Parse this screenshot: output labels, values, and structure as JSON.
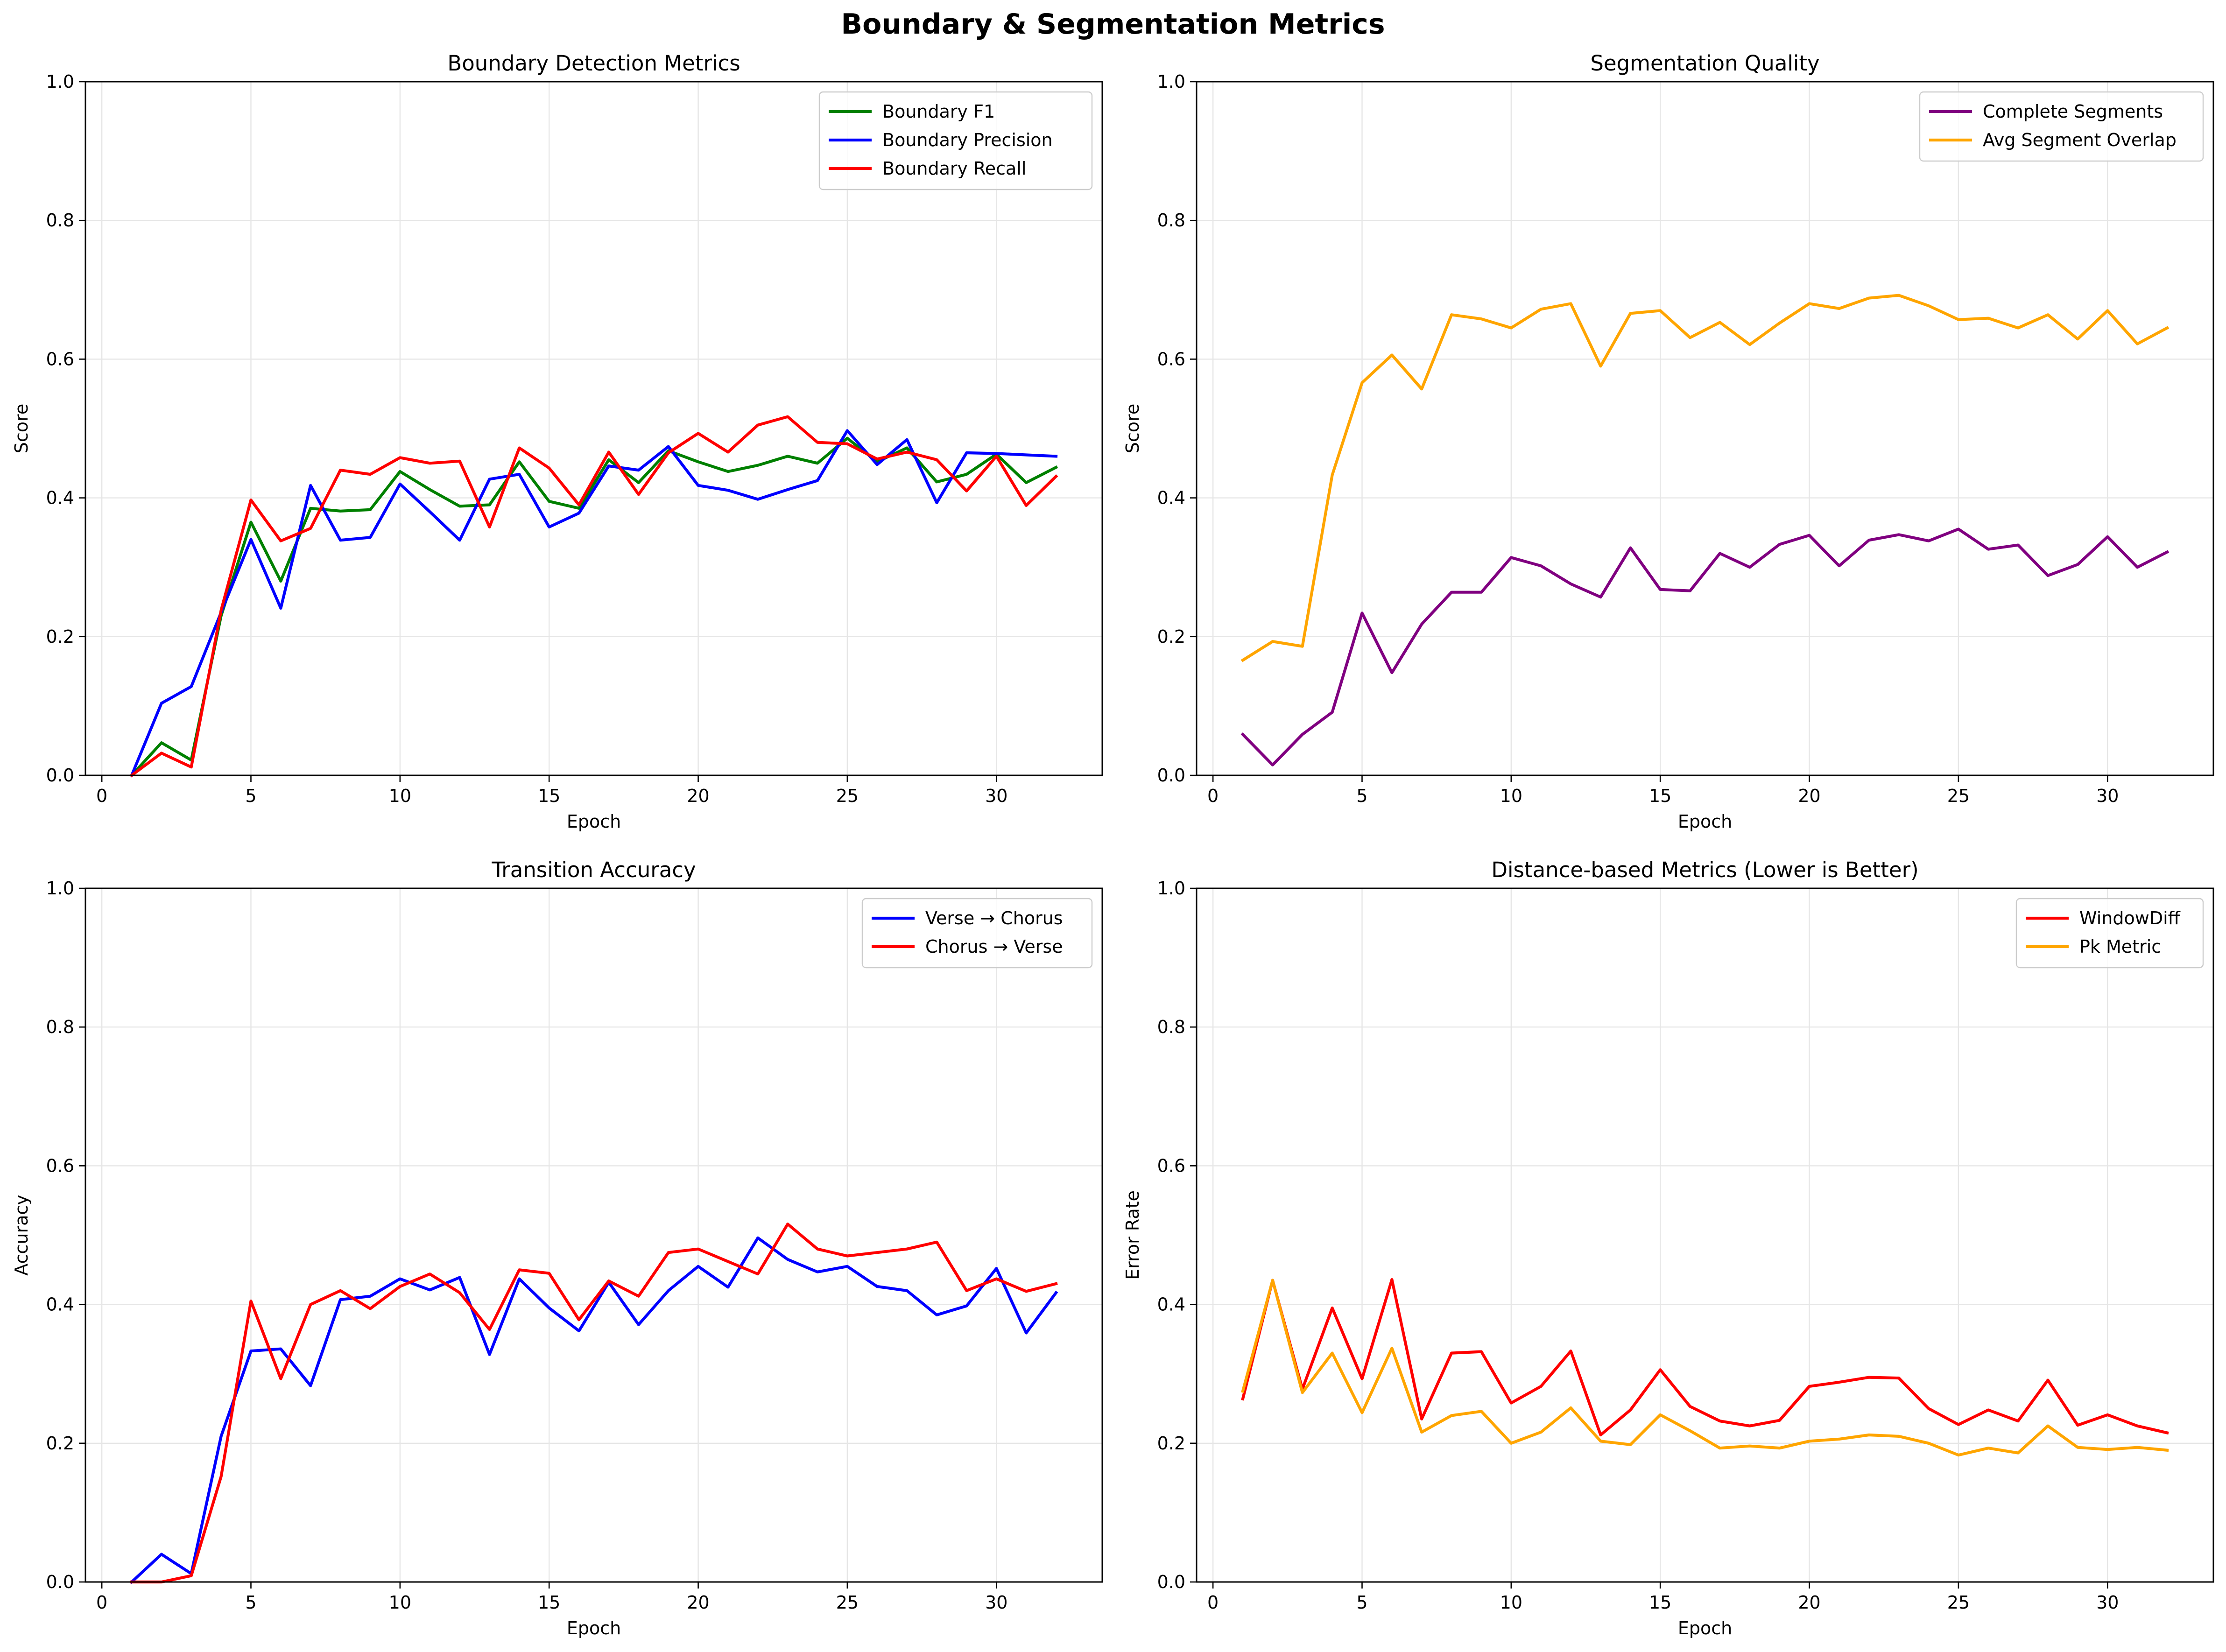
{
  "suptitle": "Boundary & Segmentation Metrics",
  "colors": {
    "green": "#008000",
    "blue": "#0000ff",
    "red": "#ff0000",
    "purple": "#800080",
    "orange": "#ffa500",
    "grid": "#e6e6e6",
    "axis": "#000000"
  },
  "chart_data": [
    {
      "type": "line",
      "title": "Boundary Detection Metrics",
      "xlabel": "Epoch",
      "ylabel": "Score",
      "xlim": [
        -0.55,
        33.55
      ],
      "ylim": [
        0,
        1
      ],
      "xticks": [
        0,
        5,
        10,
        15,
        20,
        25,
        30
      ],
      "yticks": [
        0.0,
        0.2,
        0.4,
        0.6,
        0.8,
        1.0
      ],
      "grid": true,
      "legend": "upper right",
      "x": [
        1,
        2,
        3,
        4,
        5,
        6,
        7,
        8,
        9,
        10,
        11,
        12,
        13,
        14,
        15,
        16,
        17,
        18,
        19,
        20,
        21,
        22,
        23,
        24,
        25,
        26,
        27,
        28,
        29,
        30,
        31,
        32
      ],
      "series": [
        {
          "name": "Boundary F1",
          "color": "#008000",
          "values": [
            0.0,
            0.047,
            0.022,
            0.23,
            0.365,
            0.28,
            0.385,
            0.381,
            0.383,
            0.438,
            0.412,
            0.388,
            0.39,
            0.452,
            0.395,
            0.385,
            0.455,
            0.422,
            0.468,
            0.452,
            0.438,
            0.447,
            0.46,
            0.45,
            0.486,
            0.452,
            0.472,
            0.423,
            0.434,
            0.463,
            0.422,
            0.444
          ]
        },
        {
          "name": "Boundary Precision",
          "color": "#0000ff",
          "values": [
            0.0,
            0.104,
            0.128,
            0.235,
            0.34,
            0.241,
            0.418,
            0.339,
            0.343,
            0.42,
            0.38,
            0.339,
            0.427,
            0.434,
            0.358,
            0.378,
            0.446,
            0.44,
            0.474,
            0.418,
            0.411,
            0.398,
            0.412,
            0.425,
            0.497,
            0.448,
            0.484,
            0.393,
            0.465,
            0.464,
            0.462,
            0.46
          ]
        },
        {
          "name": "Boundary Recall",
          "color": "#ff0000",
          "values": [
            0.0,
            0.032,
            0.012,
            0.238,
            0.397,
            0.338,
            0.356,
            0.44,
            0.434,
            0.458,
            0.45,
            0.453,
            0.358,
            0.472,
            0.443,
            0.39,
            0.466,
            0.405,
            0.465,
            0.493,
            0.466,
            0.505,
            0.517,
            0.48,
            0.478,
            0.456,
            0.466,
            0.455,
            0.41,
            0.46,
            0.389,
            0.431
          ]
        }
      ]
    },
    {
      "type": "line",
      "title": "Segmentation Quality",
      "xlabel": "Epoch",
      "ylabel": "Score",
      "xlim": [
        -0.55,
        33.55
      ],
      "ylim": [
        0,
        1
      ],
      "xticks": [
        0,
        5,
        10,
        15,
        20,
        25,
        30
      ],
      "yticks": [
        0.0,
        0.2,
        0.4,
        0.6,
        0.8,
        1.0
      ],
      "grid": true,
      "legend": "upper right",
      "x": [
        1,
        2,
        3,
        4,
        5,
        6,
        7,
        8,
        9,
        10,
        11,
        12,
        13,
        14,
        15,
        16,
        17,
        18,
        19,
        20,
        21,
        22,
        23,
        24,
        25,
        26,
        27,
        28,
        29,
        30,
        31,
        32
      ],
      "series": [
        {
          "name": "Complete Segments",
          "color": "#800080",
          "values": [
            0.059,
            0.015,
            0.059,
            0.091,
            0.234,
            0.148,
            0.218,
            0.264,
            0.264,
            0.314,
            0.302,
            0.276,
            0.257,
            0.328,
            0.268,
            0.266,
            0.32,
            0.3,
            0.333,
            0.346,
            0.302,
            0.339,
            0.347,
            0.338,
            0.355,
            0.326,
            0.332,
            0.288,
            0.304,
            0.344,
            0.3,
            0.322
          ]
        },
        {
          "name": "Avg Segment Overlap",
          "color": "#ffa500",
          "values": [
            0.166,
            0.193,
            0.186,
            0.433,
            0.566,
            0.606,
            0.557,
            0.664,
            0.658,
            0.645,
            0.672,
            0.68,
            0.59,
            0.666,
            0.67,
            0.631,
            0.653,
            0.621,
            0.652,
            0.68,
            0.673,
            0.688,
            0.692,
            0.677,
            0.657,
            0.659,
            0.645,
            0.664,
            0.629,
            0.67,
            0.622,
            0.645
          ]
        }
      ]
    },
    {
      "type": "line",
      "title": "Transition Accuracy",
      "xlabel": "Epoch",
      "ylabel": "Accuracy",
      "xlim": [
        -0.55,
        33.55
      ],
      "ylim": [
        0,
        1
      ],
      "xticks": [
        0,
        5,
        10,
        15,
        20,
        25,
        30
      ],
      "yticks": [
        0.0,
        0.2,
        0.4,
        0.6,
        0.8,
        1.0
      ],
      "grid": true,
      "legend": "upper right",
      "x": [
        1,
        2,
        3,
        4,
        5,
        6,
        7,
        8,
        9,
        10,
        11,
        12,
        13,
        14,
        15,
        16,
        17,
        18,
        19,
        20,
        21,
        22,
        23,
        24,
        25,
        26,
        27,
        28,
        29,
        30,
        31,
        32
      ],
      "series": [
        {
          "name": "Verse → Chorus",
          "color": "#0000ff",
          "values": [
            0.0,
            0.04,
            0.012,
            0.21,
            0.333,
            0.336,
            0.283,
            0.407,
            0.412,
            0.437,
            0.421,
            0.439,
            0.328,
            0.437,
            0.395,
            0.362,
            0.432,
            0.371,
            0.42,
            0.455,
            0.425,
            0.496,
            0.465,
            0.447,
            0.455,
            0.426,
            0.42,
            0.385,
            0.398,
            0.452,
            0.359,
            0.417
          ]
        },
        {
          "name": "Chorus → Verse",
          "color": "#ff0000",
          "values": [
            0.0,
            0.0,
            0.009,
            0.152,
            0.405,
            0.293,
            0.4,
            0.42,
            0.394,
            0.426,
            0.444,
            0.417,
            0.364,
            0.45,
            0.445,
            0.378,
            0.434,
            0.412,
            0.475,
            0.48,
            0.462,
            0.444,
            0.516,
            0.48,
            0.47,
            0.475,
            0.48,
            0.49,
            0.42,
            0.437,
            0.419,
            0.43
          ]
        }
      ]
    },
    {
      "type": "line",
      "title": "Distance-based Metrics (Lower is Better)",
      "xlabel": "Epoch",
      "ylabel": "Error Rate",
      "xlim": [
        -0.55,
        33.55
      ],
      "ylim": [
        0,
        1
      ],
      "xticks": [
        0,
        5,
        10,
        15,
        20,
        25,
        30
      ],
      "yticks": [
        0.0,
        0.2,
        0.4,
        0.6,
        0.8,
        1.0
      ],
      "grid": true,
      "legend": "upper right",
      "x": [
        1,
        2,
        3,
        4,
        5,
        6,
        7,
        8,
        9,
        10,
        11,
        12,
        13,
        14,
        15,
        16,
        17,
        18,
        19,
        20,
        21,
        22,
        23,
        24,
        25,
        26,
        27,
        28,
        29,
        30,
        31,
        32
      ],
      "series": [
        {
          "name": "WindowDiff",
          "color": "#ff0000",
          "values": [
            0.264,
            0.435,
            0.278,
            0.395,
            0.293,
            0.436,
            0.235,
            0.33,
            0.332,
            0.258,
            0.282,
            0.333,
            0.212,
            0.248,
            0.306,
            0.253,
            0.232,
            0.225,
            0.233,
            0.282,
            0.288,
            0.295,
            0.294,
            0.25,
            0.227,
            0.248,
            0.232,
            0.291,
            0.226,
            0.241,
            0.225,
            0.215
          ]
        },
        {
          "name": "Pk Metric",
          "color": "#ffa500",
          "values": [
            0.275,
            0.435,
            0.273,
            0.33,
            0.244,
            0.337,
            0.216,
            0.24,
            0.246,
            0.2,
            0.216,
            0.251,
            0.203,
            0.198,
            0.241,
            0.218,
            0.193,
            0.196,
            0.193,
            0.203,
            0.206,
            0.212,
            0.21,
            0.2,
            0.183,
            0.193,
            0.186,
            0.225,
            0.194,
            0.191,
            0.194,
            0.19
          ]
        }
      ]
    }
  ]
}
